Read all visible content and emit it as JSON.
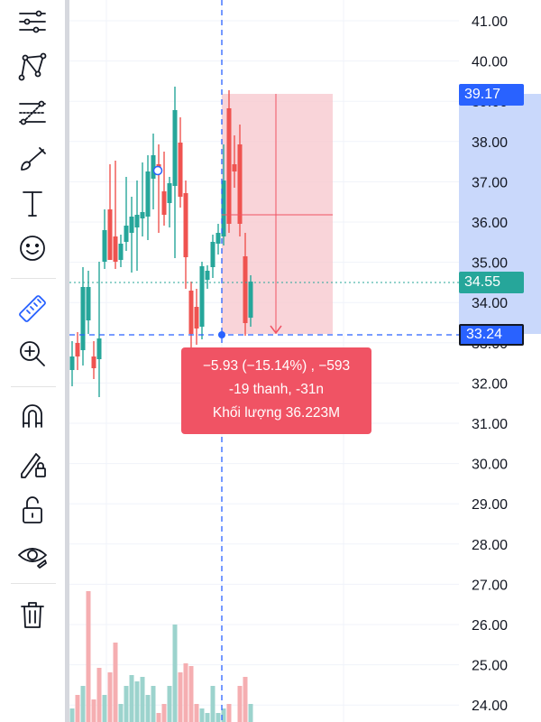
{
  "toolbar": {
    "tools": [
      {
        "icon": "menu-lines-icon",
        "name": "tool-menu"
      },
      {
        "icon": "pattern-icon",
        "name": "tool-patterns"
      },
      {
        "icon": "fib-icon",
        "name": "tool-fibonacci"
      },
      {
        "icon": "brush-icon",
        "name": "tool-brush"
      },
      {
        "icon": "text-icon",
        "name": "tool-text"
      },
      {
        "icon": "emoji-icon",
        "name": "tool-emoji"
      },
      {
        "icon": "ruler-icon",
        "name": "tool-measure"
      },
      {
        "icon": "zoom-in-icon",
        "name": "tool-zoom"
      },
      {
        "icon": "magnet-icon",
        "name": "tool-magnet"
      },
      {
        "icon": "lock-drawing-icon",
        "name": "tool-lock-drawings"
      },
      {
        "icon": "unlock-icon",
        "name": "tool-lock-all"
      },
      {
        "icon": "eye-icon",
        "name": "tool-hide"
      },
      {
        "icon": "trash-icon",
        "name": "tool-delete"
      }
    ],
    "active_color": "#2962ff"
  },
  "price_axis": {
    "labels": [
      "41.00",
      "40.00",
      "39.00",
      "38.00",
      "37.00",
      "36.00",
      "35.00",
      "34.00",
      "33.00",
      "32.00",
      "31.00",
      "30.00",
      "29.00",
      "28.00",
      "27.00",
      "26.00",
      "25.00",
      "24.00"
    ],
    "badges": {
      "measure_top": "39.17",
      "last_price": "34.55",
      "measure_bottom": "33.24"
    }
  },
  "measure": {
    "line1": "−5.93 (−15.14%) , −593",
    "line2": "-19 thanh, -31n",
    "line3": "Khối lượng 36.223M"
  },
  "colors": {
    "up": "#26a69a",
    "down": "#ef5350",
    "measure_fill": "#f8c9cf",
    "measure_line": "#f05364",
    "crosshair": "#2962ff",
    "axis_highlight": "#c9d8fb"
  }
}
